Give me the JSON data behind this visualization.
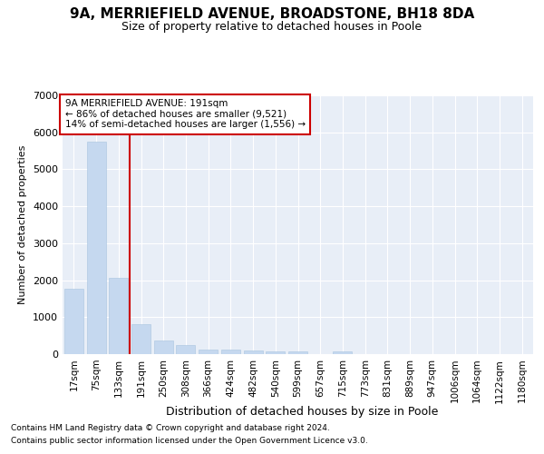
{
  "title": "9A, MERRIEFIELD AVENUE, BROADSTONE, BH18 8DA",
  "subtitle": "Size of property relative to detached houses in Poole",
  "xlabel": "Distribution of detached houses by size in Poole",
  "ylabel": "Number of detached properties",
  "footnote1": "Contains HM Land Registry data © Crown copyright and database right 2024.",
  "footnote2": "Contains public sector information licensed under the Open Government Licence v3.0.",
  "annotation_line1": "9A MERRIEFIELD AVENUE: 191sqm",
  "annotation_line2": "← 86% of detached houses are smaller (9,521)",
  "annotation_line3": "14% of semi-detached houses are larger (1,556) →",
  "bar_color": "#c5d8ef",
  "bar_edge_color": "#a8c4e0",
  "vline_color": "#cc0000",
  "vline_x_idx": 3,
  "categories": [
    "17sqm",
    "75sqm",
    "133sqm",
    "191sqm",
    "250sqm",
    "308sqm",
    "366sqm",
    "424sqm",
    "482sqm",
    "540sqm",
    "599sqm",
    "657sqm",
    "715sqm",
    "773sqm",
    "831sqm",
    "889sqm",
    "947sqm",
    "1006sqm",
    "1064sqm",
    "1122sqm",
    "1180sqm"
  ],
  "values": [
    1780,
    5750,
    2060,
    810,
    370,
    235,
    120,
    115,
    105,
    85,
    80,
    0,
    75,
    0,
    0,
    0,
    0,
    0,
    0,
    0,
    0
  ],
  "ylim": [
    0,
    7000
  ],
  "yticks": [
    0,
    1000,
    2000,
    3000,
    4000,
    5000,
    6000,
    7000
  ],
  "bg_color": "#e8eef7",
  "grid_color": "#ffffff",
  "ann_box_edgecolor": "#cc0000",
  "title_fontsize": 11,
  "subtitle_fontsize": 9,
  "ylabel_fontsize": 8,
  "xlabel_fontsize": 9,
  "tick_fontsize": 7.5,
  "ytick_fontsize": 8,
  "footnote_fontsize": 6.5
}
